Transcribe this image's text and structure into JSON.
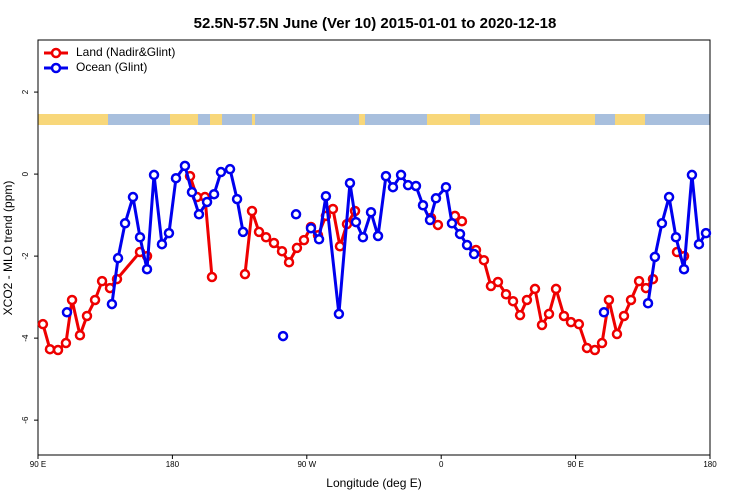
{
  "chart_data": {
    "type": "line",
    "title": "52.5N-57.5N June (Ver 10)   2015-01-01 to 2020-12-18",
    "x_label": "Longitude (deg E)",
    "y_label": "XCO2 - MLO trend (ppm)",
    "xlim": [
      90,
      540
    ],
    "ylim": [
      -6.85,
      3.27
    ],
    "xticks": [
      {
        "value": 90,
        "label": "90 E"
      },
      180,
      {
        "value": 270,
        "label": "90 W"
      },
      {
        "value": 360,
        "label": "0"
      },
      {
        "value": 450,
        "label": "90 E"
      },
      {
        "value": 540,
        "label": "180"
      }
    ],
    "yticks": [
      -6,
      -4,
      -2,
      0,
      2
    ],
    "legend": "top-left",
    "series": [
      {
        "name": "Land (Nadir&Glint)",
        "color": "#ee0000",
        "x": [
          93.3,
          98.0,
          103.4,
          108.7,
          112.8,
          118.1,
          122.8,
          128.2,
          132.9,
          138.2,
          142.9,
          158.3,
          163.0,
          null,
          191.8,
          196.5,
          201.8,
          206.5,
          null,
          228.6,
          233.3,
          238.0,
          242.7,
          248.0,
          253.4,
          258.1,
          263.4,
          268.1,
          272.8,
          277.5,
          282.8,
          287.5,
          292.2,
          296.9,
          302.3,
          null,
          353.2,
          357.8,
          null,
          369.2,
          373.9,
          null,
          383.3,
          388.6,
          393.3,
          398.0,
          403.4,
          408.1,
          412.8,
          417.4,
          422.8,
          427.5,
          432.2,
          436.9,
          442.2,
          446.9,
          452.2,
          457.6,
          462.9,
          467.7,
          472.3,
          477.7,
          482.4,
          487.1,
          492.5,
          497.1,
          501.8,
          null,
          517.9,
          522.6
        ],
        "values": [
          -3.66,
          -4.27,
          -4.29,
          -4.12,
          -3.07,
          -3.93,
          -3.46,
          -3.07,
          -2.61,
          -2.78,
          -2.56,
          -1.9,
          -2.0,
          null,
          -0.05,
          -0.56,
          -0.56,
          -2.51,
          null,
          -2.44,
          -0.9,
          -1.41,
          -1.54,
          -1.68,
          -1.88,
          -2.15,
          -1.8,
          -1.61,
          -1.29,
          -1.49,
          -1.02,
          -0.85,
          -1.76,
          -1.22,
          -0.9,
          null,
          -1.07,
          -1.24,
          null,
          -1.02,
          -1.15,
          null,
          -1.85,
          -2.1,
          -2.73,
          -2.63,
          -2.93,
          -3.1,
          -3.44,
          -3.07,
          -2.8,
          -3.68,
          -3.41,
          -2.8,
          -3.46,
          -3.61,
          -3.66,
          -4.24,
          -4.29,
          -4.12,
          -3.07,
          -3.9,
          -3.46,
          -3.07,
          -2.61,
          -2.78,
          -2.56,
          null,
          -1.9,
          -2.0
        ]
      },
      {
        "name": "Ocean (Glint)",
        "color": "#0000ee",
        "x": [
          109.4,
          null,
          139.5,
          143.6,
          148.3,
          153.6,
          158.3,
          163.0,
          167.7,
          173.0,
          177.7,
          182.4,
          188.4,
          193.1,
          197.8,
          203.2,
          207.9,
          212.5,
          218.6,
          223.3,
          227.3,
          null,
          254.1,
          null,
          262.8,
          null,
          272.8,
          278.2,
          282.8,
          291.5,
          298.9,
          302.9,
          307.6,
          313.0,
          317.7,
          323.0,
          327.7,
          333.1,
          337.8,
          343.1,
          347.8,
          352.5,
          356.5,
          363.2,
          367.2,
          372.6,
          377.3,
          382.0,
          null,
          469.0,
          null,
          498.5,
          503.1,
          507.8,
          512.6,
          517.2,
          522.6,
          527.9,
          532.6,
          537.3
        ],
        "values": [
          -3.37,
          null,
          -3.17,
          -2.05,
          -1.2,
          -0.56,
          -1.54,
          -2.32,
          -0.02,
          -1.71,
          -1.44,
          -0.1,
          0.2,
          -0.44,
          -0.98,
          -0.68,
          -0.49,
          0.05,
          0.12,
          -0.61,
          -1.41,
          null,
          -3.95,
          null,
          -0.98,
          null,
          -1.32,
          -1.59,
          -0.54,
          -3.41,
          -0.22,
          -1.17,
          -1.54,
          -0.93,
          -1.51,
          -0.05,
          -0.32,
          -0.02,
          -0.27,
          -0.29,
          -0.76,
          -1.12,
          -0.59,
          -0.32,
          -1.2,
          -1.46,
          -1.73,
          -1.95,
          null,
          -3.37,
          null,
          -3.15,
          -2.02,
          -1.2,
          -0.56,
          -1.54,
          -2.32,
          -0.02,
          -1.71,
          -1.44
        ]
      }
    ]
  }
}
